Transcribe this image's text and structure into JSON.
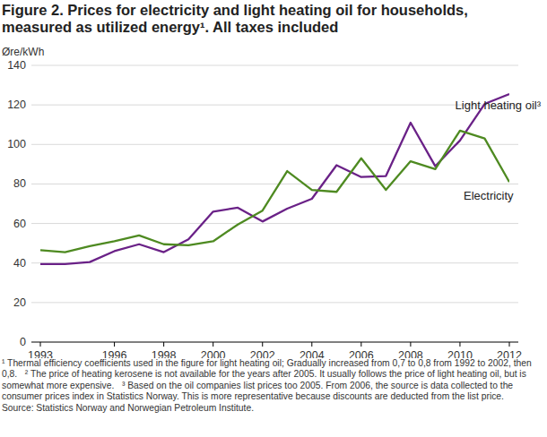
{
  "chart_data": {
    "type": "line",
    "title": "Figure 2. Prices for electricity and light heating oil for households, measured as utilized energy¹. All taxes included",
    "y_label": "Øre/kWh",
    "x": [
      1993,
      1994,
      1995,
      1996,
      1997,
      1998,
      1999,
      2000,
      2001,
      2002,
      2003,
      2004,
      2005,
      2006,
      2007,
      2008,
      2009,
      2010,
      2011,
      2012
    ],
    "series": [
      {
        "name": "Light heating oil³",
        "color": "#6a2187",
        "values": [
          39.5,
          39.5,
          40.5,
          46,
          49.5,
          45.5,
          52,
          66,
          68,
          61,
          67.5,
          72.5,
          89.5,
          83.5,
          84,
          111,
          89,
          102,
          120.5,
          125.5
        ]
      },
      {
        "name": "Electricity",
        "color": "#4e8a21",
        "values": [
          46.5,
          45.5,
          48.5,
          51,
          54,
          49.5,
          49,
          51,
          59.5,
          66.5,
          86.5,
          77,
          76,
          93,
          77,
          91.5,
          87.5,
          107,
          103,
          81
        ]
      }
    ],
    "xlim": [
      1993,
      2012
    ],
    "xticks": [
      1993,
      1996,
      1998,
      2000,
      2002,
      2004,
      2006,
      2008,
      2010,
      2012
    ],
    "ylim": [
      0,
      140
    ],
    "yticks": [
      0,
      20,
      40,
      60,
      80,
      100,
      120,
      140
    ],
    "grid": true,
    "footnotes": [
      "¹ Thermal efficiency coefficients used in the figure for light heating oil; Gradually increased from 0,7 to 0,8 from 1992 to 2002, then 0,8.",
      "² The price of heating kerosene is not available for the years after 2005. It usually follows the price of light heating oil, but is somewhat more expensive.",
      "³ Based on the oil companies list prices too 2005. From 2006, the source is data collected to the consumer prices index in Statistics Norway. This is more representative because discounts are deducted from the list price."
    ],
    "source": "Source: Statistics Norway and Norwegian Petroleum Institute."
  }
}
